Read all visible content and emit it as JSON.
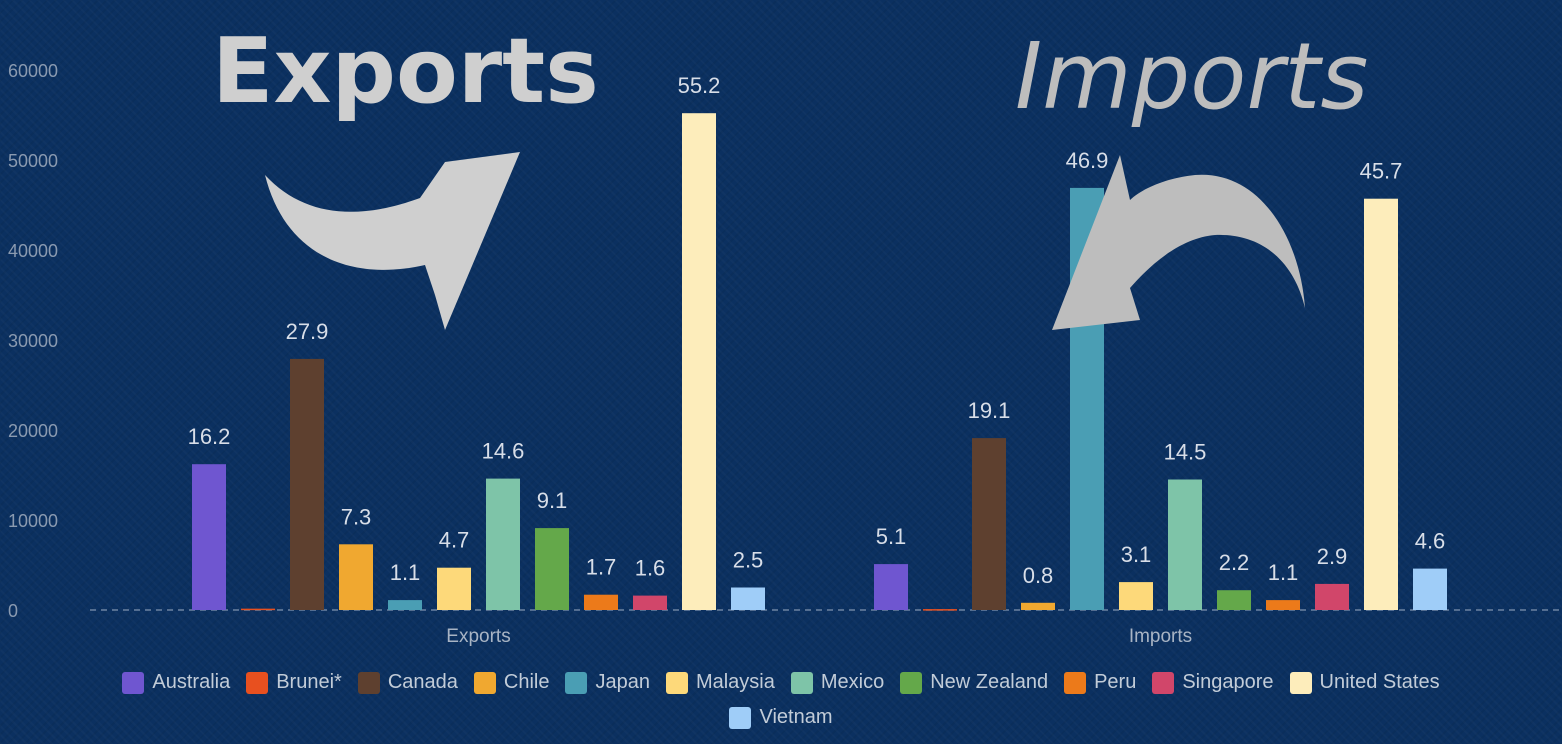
{
  "banners": {
    "exports": "Exports",
    "imports": "Imports"
  },
  "chart_data": {
    "type": "bar",
    "categories": [
      "Exports",
      "Imports"
    ],
    "ylim": [
      0,
      60000
    ],
    "yticks": [
      0,
      10000,
      20000,
      30000,
      40000,
      50000,
      60000
    ],
    "grid": false,
    "legend_position": "bottom",
    "series": [
      {
        "name": "Australia",
        "color": "#6f56d0",
        "values": [
          16200,
          5100
        ],
        "labels": [
          "16.2",
          "5.1"
        ]
      },
      {
        "name": "Brunei*",
        "color": "#e8501f",
        "values": [
          150,
          100
        ],
        "labels": [
          "",
          ""
        ]
      },
      {
        "name": "Canada",
        "color": "#5e402f",
        "values": [
          27900,
          19100
        ],
        "labels": [
          "27.9",
          "19.1"
        ]
      },
      {
        "name": "Chile",
        "color": "#f0a830",
        "values": [
          7300,
          800
        ],
        "labels": [
          "7.3",
          "0.8"
        ]
      },
      {
        "name": "Japan",
        "color": "#4a9eb4",
        "values": [
          1100,
          46900
        ],
        "labels": [
          "1.1",
          "46.9"
        ]
      },
      {
        "name": "Malaysia",
        "color": "#fdd97a",
        "values": [
          4700,
          3100
        ],
        "labels": [
          "4.7",
          "3.1"
        ]
      },
      {
        "name": "Mexico",
        "color": "#7ec4a8",
        "values": [
          14600,
          14500
        ],
        "labels": [
          "14.6",
          "14.5"
        ]
      },
      {
        "name": "New Zealand",
        "color": "#64a84a",
        "values": [
          9100,
          2200
        ],
        "labels": [
          "9.1",
          "2.2"
        ]
      },
      {
        "name": "Peru",
        "color": "#ec7a1a",
        "values": [
          1700,
          1100
        ],
        "labels": [
          "1.7",
          "1.1"
        ]
      },
      {
        "name": "Singapore",
        "color": "#d1466a",
        "values": [
          1600,
          2900
        ],
        "labels": [
          "1.6",
          "2.9"
        ]
      },
      {
        "name": "United States",
        "color": "#fdedbb",
        "values": [
          55200,
          45700
        ],
        "labels": [
          "55.2",
          "45.7"
        ]
      },
      {
        "name": "Vietnam",
        "color": "#9fcdf8",
        "values": [
          2500,
          4600
        ],
        "labels": [
          "2.5",
          "4.6"
        ]
      }
    ]
  }
}
